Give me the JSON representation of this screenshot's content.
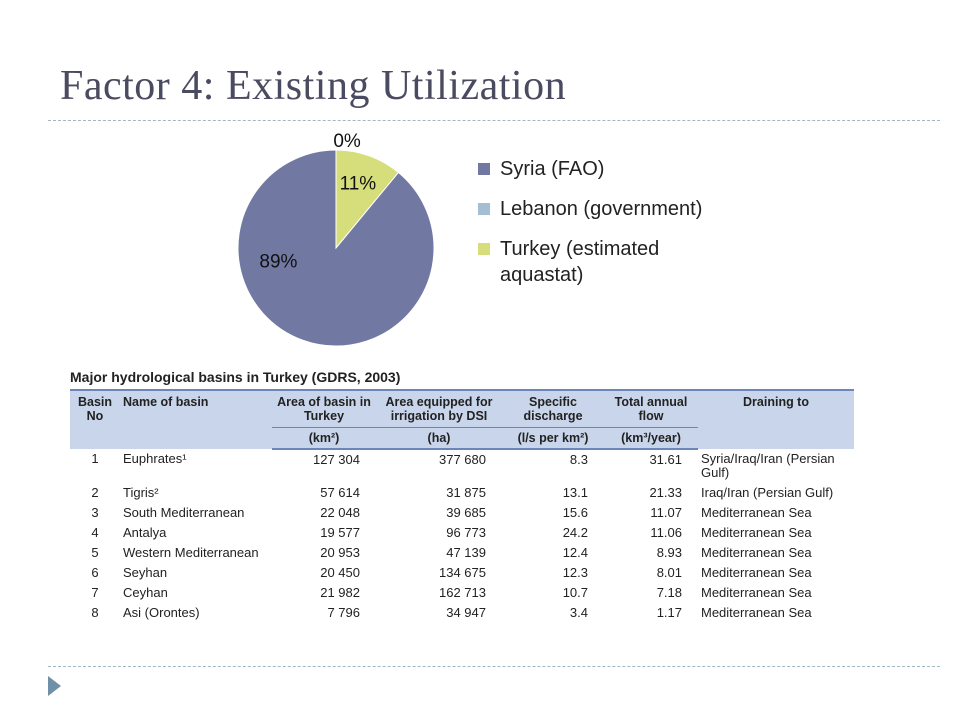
{
  "slide": {
    "title": "Factor 4: Existing Utilization"
  },
  "colors": {
    "syria": "#7179a3",
    "lebanon": "#a4bed6",
    "turkey": "#d6de7b",
    "title_text": "#4a4a60",
    "table_header_bg": "#c9d5ea"
  },
  "chart_data": {
    "type": "pie",
    "title": "",
    "legend_position": "right",
    "labels": [
      "Syria (FAO)",
      "Lebanon (government)",
      "Turkey (estimated aquastat)"
    ],
    "values": [
      89,
      0,
      11
    ],
    "data_labels": [
      "89%",
      "0%",
      "11%"
    ]
  },
  "table": {
    "caption": "Major hydrological basins in Turkey (GDRS, 2003)",
    "headers": {
      "basin_no": "Basin No",
      "name": "Name of basin",
      "area": "Area of basin in Turkey",
      "irrigation": "Area equipped for irrigation by DSI",
      "discharge": "Specific discharge",
      "flow": "Total annual flow",
      "draining": "Draining to"
    },
    "units": {
      "area": "(km²)",
      "irrigation": "(ha)",
      "discharge": "(l/s per km²)",
      "flow": "(km³/year)"
    },
    "rows": [
      {
        "no": "1",
        "name": "Euphrates¹",
        "area": "127 304",
        "irrigation": "377 680",
        "discharge": "8.3",
        "flow": "31.61",
        "draining": "Syria/Iraq/Iran (Persian Gulf)"
      },
      {
        "no": "2",
        "name": "Tigris²",
        "area": "57 614",
        "irrigation": "31 875",
        "discharge": "13.1",
        "flow": "21.33",
        "draining": "Iraq/Iran (Persian Gulf)"
      },
      {
        "no": "3",
        "name": "South Mediterranean",
        "area": "22 048",
        "irrigation": "39 685",
        "discharge": "15.6",
        "flow": "11.07",
        "draining": "Mediterranean Sea"
      },
      {
        "no": "4",
        "name": "Antalya",
        "area": "19 577",
        "irrigation": "96 773",
        "discharge": "24.2",
        "flow": "11.06",
        "draining": "Mediterranean Sea"
      },
      {
        "no": "5",
        "name": "Western Mediterranean",
        "area": "20 953",
        "irrigation": "47 139",
        "discharge": "12.4",
        "flow": "8.93",
        "draining": "Mediterranean Sea"
      },
      {
        "no": "6",
        "name": "Seyhan",
        "area": "20 450",
        "irrigation": "134 675",
        "discharge": "12.3",
        "flow": "8.01",
        "draining": "Mediterranean Sea"
      },
      {
        "no": "7",
        "name": "Ceyhan",
        "area": "21 982",
        "irrigation": "162 713",
        "discharge": "10.7",
        "flow": "7.18",
        "draining": "Mediterranean Sea"
      },
      {
        "no": "8",
        "name": "Asi (Orontes)",
        "area": "7 796",
        "irrigation": "34 947",
        "discharge": "3.4",
        "flow": "1.17",
        "draining": "Mediterranean Sea"
      }
    ]
  }
}
